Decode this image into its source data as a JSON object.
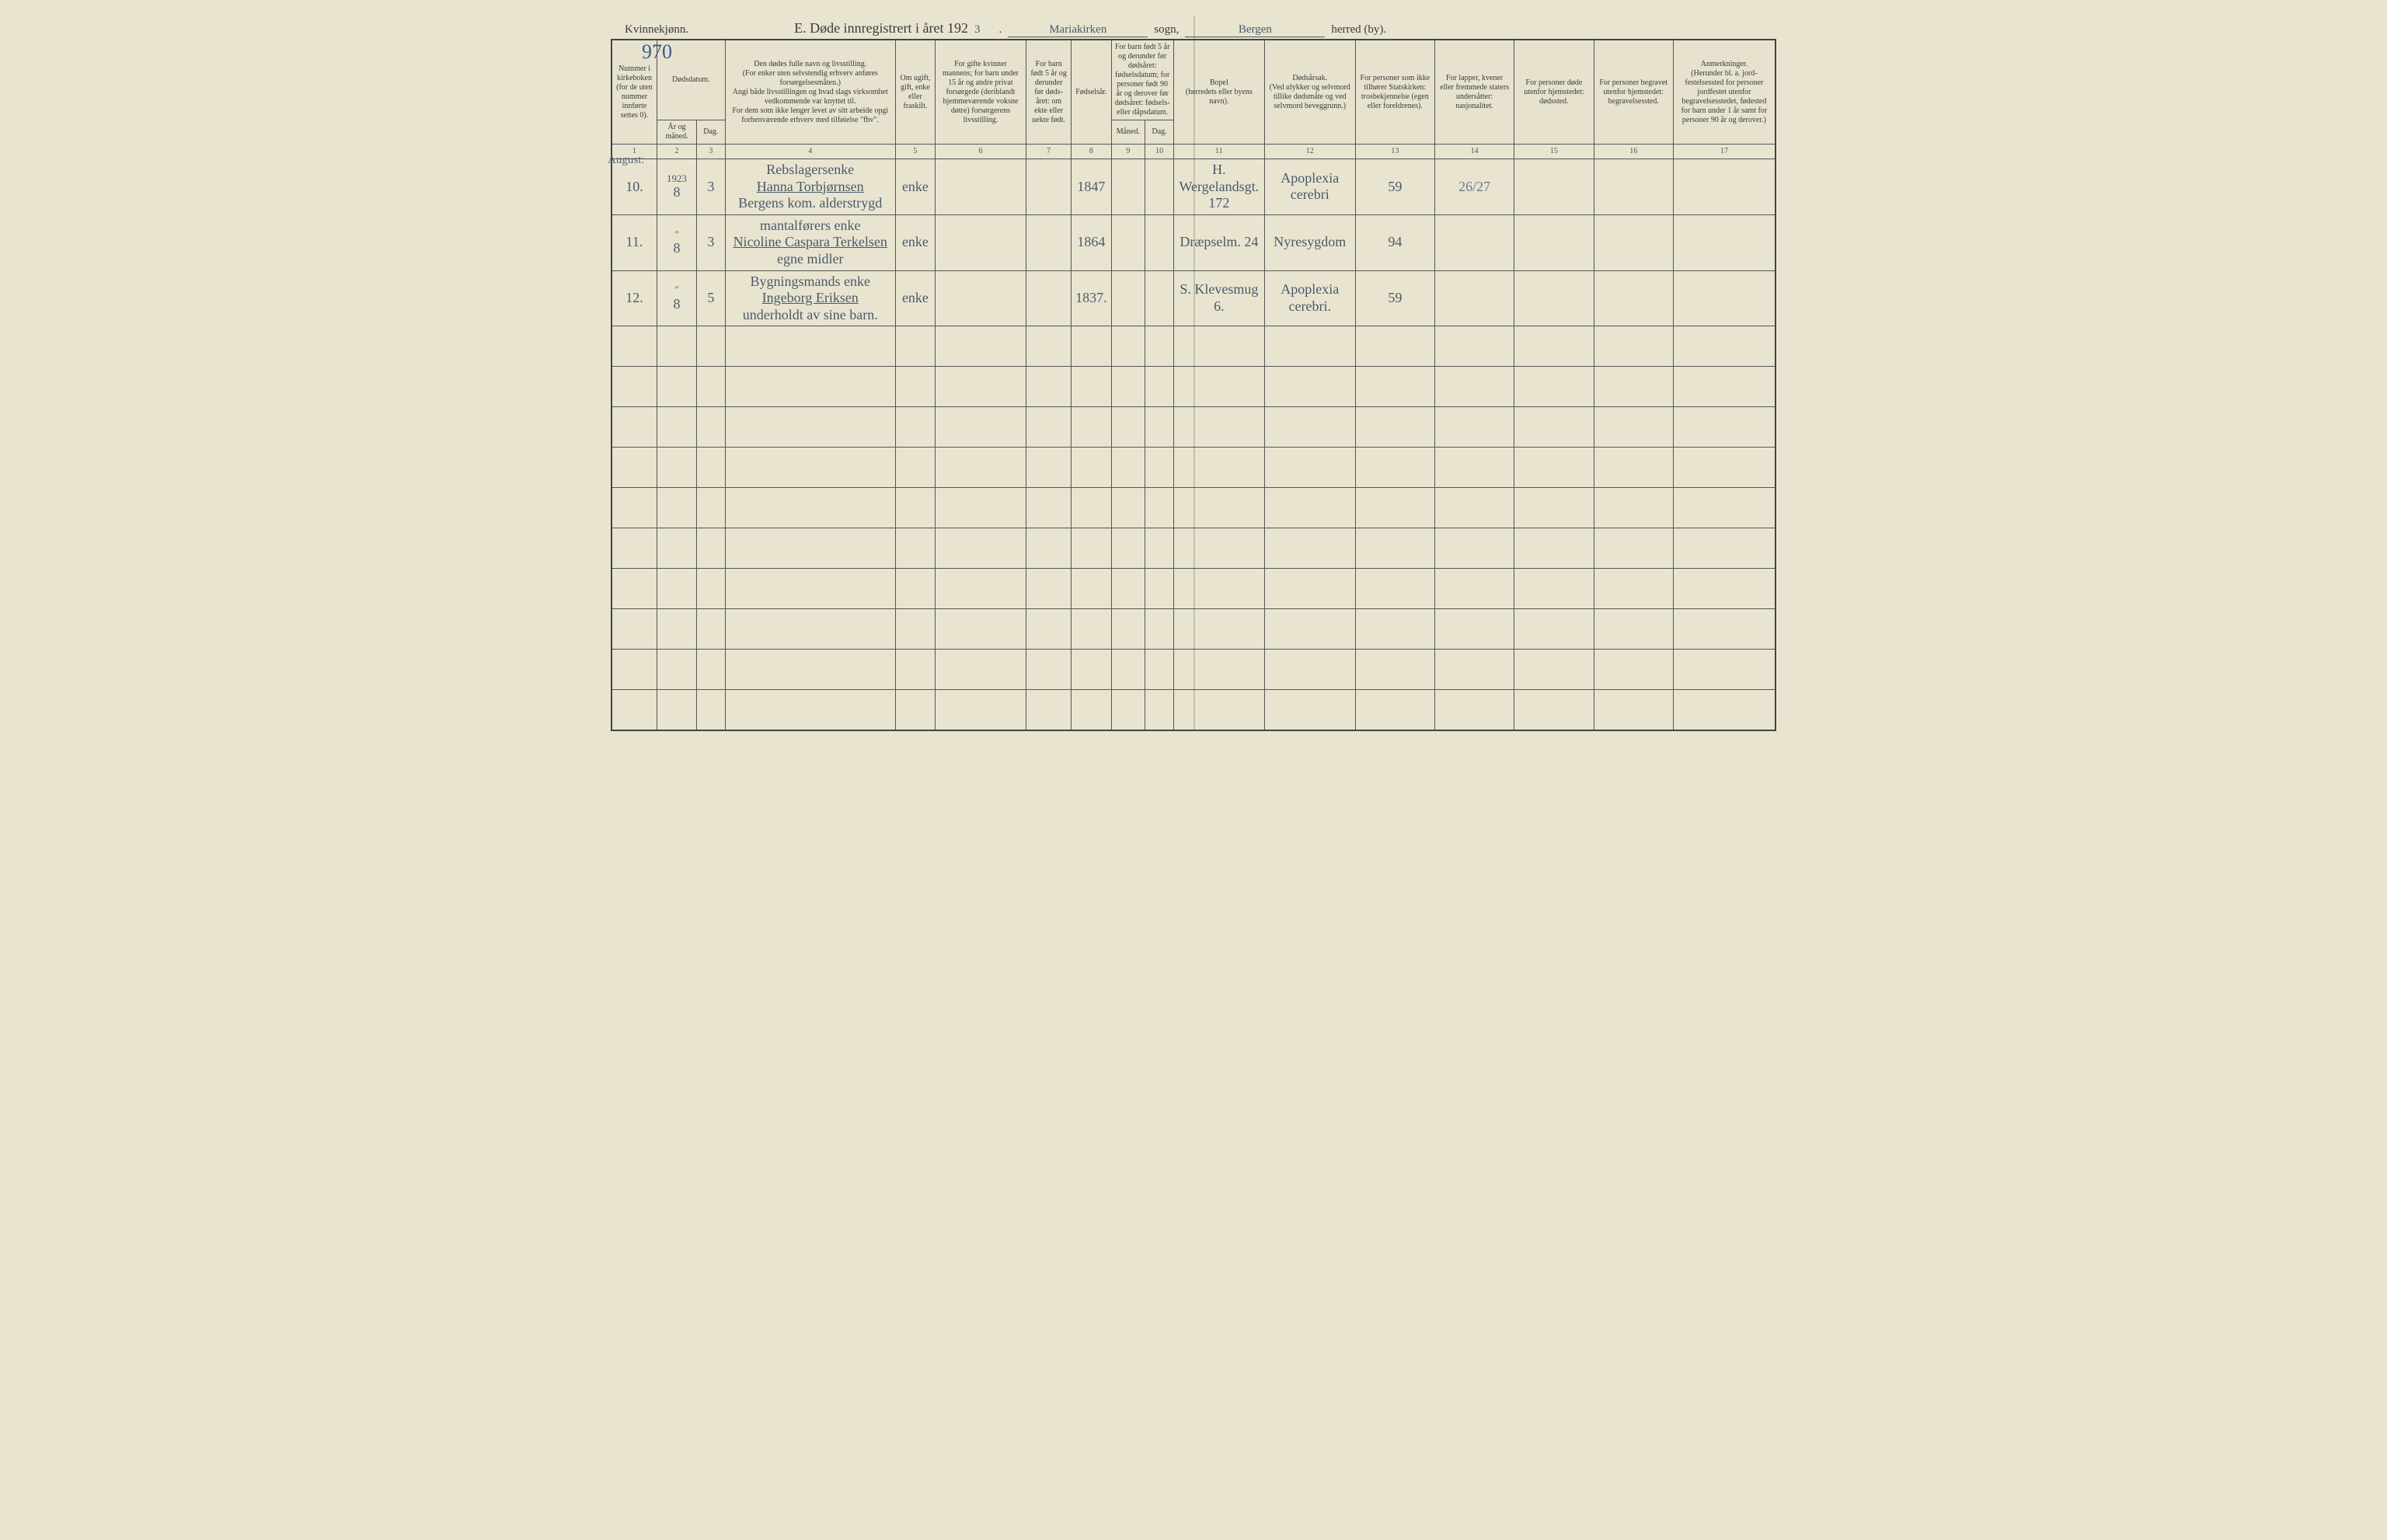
{
  "header": {
    "gender_label": "Kvinnekjønn.",
    "page_number": "970",
    "title_prefix": "E.  Døde innregistrert i året 192",
    "year_suffix": "3",
    "parish_label": "sogn,",
    "parish_value": "Mariakirken",
    "district_label": "herred (by).",
    "district_value": "Bergen"
  },
  "columns": {
    "c1": "Nummer i kirke­boken (for de uten nummer innførte settes 0).",
    "c2_group": "Dødsdatum.",
    "c2a": "År og måned.",
    "c2b": "Dag.",
    "c4": "Den dødes fulle navn og livsstilling.\n(For enker uten selvstendig erhverv anføres forsørgelsesmåten.)\nAngi både livsstillingen og hvad slags virksomhet vedkommende var knyttet til.\nFor dem som ikke lenger levet av sitt arbeide opgi forhenværende erhverv med tilføielse \"fhv\".",
    "c5": "Om ugift, gift, enke eller fraskilt.",
    "c6": "For gifte kvinner mannens; for barn under 15 år og andre privat forsørgede (der­iblandt hjemmeværende voksne døtre) forsørgerens livsstilling.",
    "c7": "For barn født 5 år og derunder før døds­året: om ekte eller uekte født.",
    "c8": "Fødsels­år.",
    "c9_group": "For barn født 5 år og der­under før dødsåret: fødselsdatum; for personer født 90 år og derover før dødsåret: fødsels- eller dåpsdatum.",
    "c9a": "Måned.",
    "c9b": "Dag.",
    "c11": "Bopel\n(herredets eller byens navn).",
    "c12": "Dødsårsak.\n(Ved ulykker og selv­mord tillike dødsmåte og ved selvmord beveggrunn.)",
    "c13": "For personer som ikke tilhører Statskirken: trosbekjennelse (egen eller foreldrenes).",
    "c14": "For lapper, kvener eller fremmede staters undersåtter: nasjonalitet.",
    "c15": "For personer døde utenfor hjemstedet: dødssted.",
    "c16": "For personer begravet utenfor hjemstedet: begravelsessted.",
    "c17": "Anmerkninger.\n(Herunder bl. a. jord­festelsessted for per­soner jordfestet utenfor begravelsesstedet, føde­sted for barn under 1 år samt for personer 90 år og derover.)"
  },
  "col_nums": [
    "1",
    "2",
    "3",
    "4",
    "5",
    "6",
    "7",
    "8",
    "9",
    "10",
    "11",
    "12",
    "13",
    "14",
    "15",
    "16",
    "17"
  ],
  "margin_month": "August:",
  "rows": [
    {
      "num": "10.",
      "year_month_top": "1923",
      "year_month": "8",
      "day": "3",
      "occupation": "Rebslagersenke",
      "name": "Hanna Torbjørnsen",
      "name_sub": "Bergens kom. alderstrygd",
      "status": "enke",
      "col6": "",
      "col7": "",
      "birth_year": "1847",
      "col9a": "",
      "col9b": "",
      "residence": "H. Wergelandsgt. 172",
      "cause": "Apoplexia cerebri",
      "col13": "59",
      "col14": "26/27",
      "col15": "",
      "col16": "",
      "col17": ""
    },
    {
      "num": "11.",
      "year_month_top": "\"",
      "year_month": "8",
      "day": "3",
      "occupation": "mantalførers enke",
      "name": "Nicoline Caspara Terkelsen",
      "name_sub": "egne midler",
      "status": "enke",
      "col6": "",
      "col7": "",
      "birth_year": "1864",
      "col9a": "",
      "col9b": "",
      "residence": "Dræpselm. 24",
      "cause": "Nyresygdom",
      "col13": "94",
      "col14": "",
      "col15": "",
      "col16": "",
      "col17": ""
    },
    {
      "num": "12.",
      "year_month_top": "\"",
      "year_month": "8",
      "day": "5",
      "occupation": "Bygningsmands enke",
      "name": "Ingeborg Eriksen",
      "name_sub": "underholdt av sine barn.",
      "status": "enke",
      "col6": "",
      "col7": "",
      "birth_year": "1837.",
      "col9a": "",
      "col9b": "",
      "residence": "S. Klevesmug 6.",
      "cause": "Apoplexia cerebri.",
      "col13": "59",
      "col14": "",
      "col15": "",
      "col16": "",
      "col17": ""
    }
  ],
  "empty_row_count": 10,
  "style": {
    "background_color": "#e8e4d0",
    "border_color": "#444444",
    "handwriting_color": "#4a5a6a",
    "blue_ink_color": "#3a5a8a",
    "header_fontsize": 10,
    "body_fontsize": 16,
    "col_widths_pct": [
      4,
      3.5,
      2.5,
      15,
      3.5,
      8,
      4,
      3.5,
      3,
      2.5,
      8,
      8,
      7,
      7,
      7,
      7,
      9
    ]
  }
}
